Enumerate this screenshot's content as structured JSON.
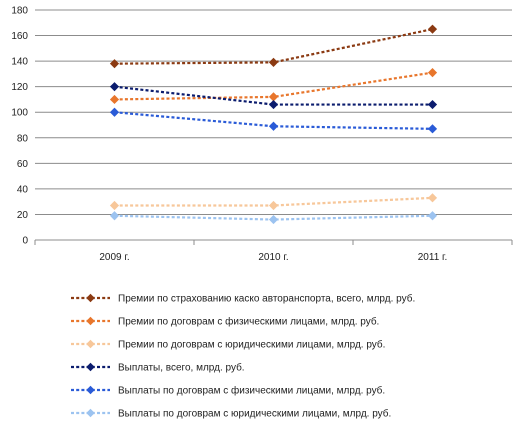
{
  "chart_data": {
    "type": "line",
    "categories": [
      "2009 г.",
      "2010 г.",
      "2011 г."
    ],
    "ylim": [
      0,
      180
    ],
    "yticks": [
      0,
      20,
      40,
      60,
      80,
      100,
      120,
      140,
      160,
      180
    ],
    "grid": true,
    "legend_position": "bottom",
    "series": [
      {
        "name": "Премии по страхованию каско авторанспорта, всего, млрд. руб.",
        "values": [
          138,
          139,
          165
        ],
        "color": "#8B3A12"
      },
      {
        "name": "Премии по договрам с физическими лицами, млрд. руб.",
        "values": [
          110,
          112,
          131
        ],
        "color": "#E8762C"
      },
      {
        "name": "Премии по договрам с юридическими лицами, млрд. руб.",
        "values": [
          27,
          27,
          33
        ],
        "color": "#F7C79A"
      },
      {
        "name": "Выплаты, всего, млрд. руб.",
        "values": [
          120,
          106,
          106
        ],
        "color": "#0B1C6E"
      },
      {
        "name": "Выплаты по договрам с физическими лицами, млрд. руб.",
        "values": [
          100,
          89,
          87
        ],
        "color": "#2A5BD7"
      },
      {
        "name": "Выплаты по договрам с юридическими лицами, млрд. руб.",
        "values": [
          19,
          16,
          19
        ],
        "color": "#9CC3F0"
      }
    ]
  }
}
